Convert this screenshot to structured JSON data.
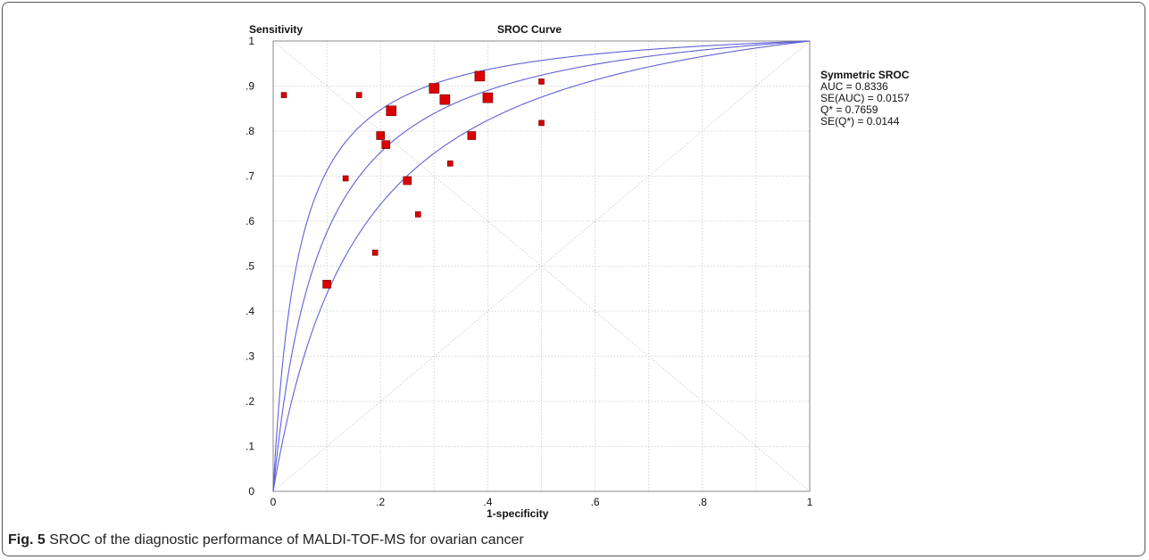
{
  "chart_data": {
    "type": "scatter",
    "title": "SROC Curve",
    "xlabel": "1-specificity",
    "ylabel": "Sensitivity",
    "xlim": [
      0,
      1
    ],
    "ylim": [
      0,
      1
    ],
    "xticks": [
      "0",
      ".2",
      ".4",
      ".6",
      ".8",
      "1"
    ],
    "yticks": [
      "0",
      ".1",
      ".2",
      ".3",
      ".4",
      ".5",
      ".6",
      ".7",
      ".8",
      ".9",
      "1"
    ],
    "grid": true,
    "points": [
      {
        "x": 0.02,
        "y": 0.88,
        "size": "small"
      },
      {
        "x": 0.1,
        "y": 0.46,
        "size": "medium"
      },
      {
        "x": 0.135,
        "y": 0.695,
        "size": "small"
      },
      {
        "x": 0.16,
        "y": 0.88,
        "size": "small"
      },
      {
        "x": 0.19,
        "y": 0.53,
        "size": "small"
      },
      {
        "x": 0.2,
        "y": 0.79,
        "size": "medium"
      },
      {
        "x": 0.21,
        "y": 0.77,
        "size": "medium"
      },
      {
        "x": 0.22,
        "y": 0.845,
        "size": "large"
      },
      {
        "x": 0.25,
        "y": 0.69,
        "size": "medium"
      },
      {
        "x": 0.27,
        "y": 0.615,
        "size": "small"
      },
      {
        "x": 0.3,
        "y": 0.895,
        "size": "large"
      },
      {
        "x": 0.32,
        "y": 0.87,
        "size": "large"
      },
      {
        "x": 0.33,
        "y": 0.728,
        "size": "small"
      },
      {
        "x": 0.37,
        "y": 0.79,
        "size": "medium"
      },
      {
        "x": 0.385,
        "y": 0.922,
        "size": "large"
      },
      {
        "x": 0.4,
        "y": 0.874,
        "size": "large"
      },
      {
        "x": 0.5,
        "y": 0.91,
        "size": "small"
      },
      {
        "x": 0.5,
        "y": 0.818,
        "size": "small"
      }
    ],
    "curves": [
      {
        "name": "",
        "param_b": 0.0,
        "param_a": 3.1
      },
      {
        "name": "",
        "param_b": 0.0,
        "param_a": 2.5
      },
      {
        "name": "",
        "param_b": 0.0,
        "param_a": 1.95
      }
    ],
    "legend": {
      "position": "right",
      "title": "Symmetric SROC",
      "lines": [
        "AUC = 0.8336",
        "SE(AUC) = 0.0157",
        "Q* = 0.7659",
        "SE(Q*) = 0.0144"
      ]
    },
    "colors": {
      "curve": "#6060d8",
      "point": "#dd0000",
      "point_edge": "#660000",
      "grid": "#c8c8c8",
      "axis": "#888888"
    }
  },
  "caption": {
    "label": "Fig. 5",
    "text": " SROC of the diagnostic performance of MALDI-TOF-MS for ovarian cancer"
  }
}
